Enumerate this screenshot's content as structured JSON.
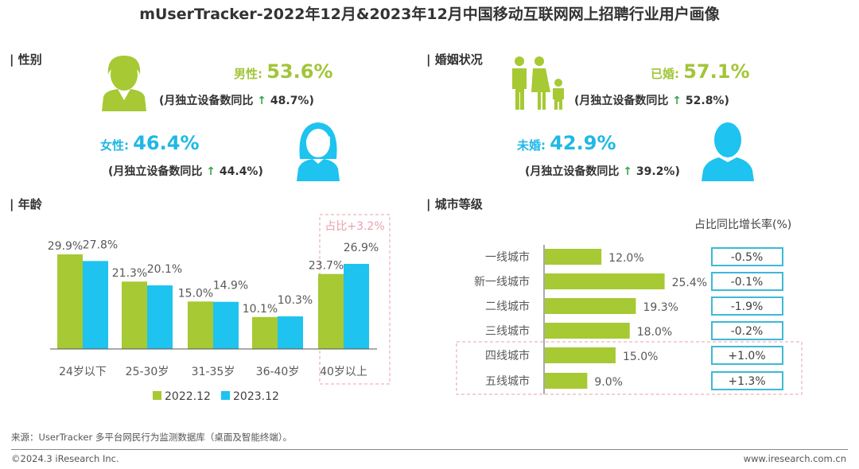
{
  "title": "mUserTracker-2022年12月&2023年12月中国移动互联网网上招聘行业用户画像",
  "gender": {
    "header": "| 性别",
    "male": {
      "label": "男性:",
      "pct": "53.6%",
      "sub_prefix": "(月独立设备数同比",
      "arrow": "↑",
      "sub_value": "48.7%)"
    },
    "female": {
      "label": "女性:",
      "pct": "46.4%",
      "sub_prefix": "(月独立设备数同比",
      "arrow": "↑",
      "sub_value": "44.4%)"
    }
  },
  "marital": {
    "header": "| 婚姻状况",
    "married": {
      "label": "已婚:",
      "pct": "57.1%",
      "sub_prefix": "(月独立设备数同比",
      "arrow": "↑",
      "sub_value": "52.8%)"
    },
    "single": {
      "label": "未婚:",
      "pct": "42.9%",
      "sub_prefix": "(月独立设备数同比",
      "arrow": "↑",
      "sub_value": "39.2%)"
    }
  },
  "colors": {
    "green": "#a6c934",
    "blue": "#1ec3ef",
    "highlight": "#e8a0ae"
  },
  "chart_data": [
    {
      "type": "bar",
      "header": "| 年龄",
      "categories": [
        "24岁以下",
        "25-30岁",
        "31-35岁",
        "36-40岁",
        "40岁以上"
      ],
      "series": [
        {
          "name": "2022.12",
          "values": [
            29.9,
            21.3,
            15.0,
            10.1,
            23.7
          ],
          "labels": [
            "29.9%",
            "21.3%",
            "15.0%",
            "10.1%",
            "23.7%"
          ]
        },
        {
          "name": "2023.12",
          "values": [
            27.8,
            20.1,
            14.9,
            10.3,
            26.9
          ],
          "labels": [
            "27.8%",
            "20.1%",
            "14.9%",
            "10.3%",
            "26.9%"
          ]
        }
      ],
      "annotation": "占比+3.2%",
      "legend": "bottom"
    },
    {
      "type": "bar",
      "orientation": "horizontal",
      "header": "| 城市等级",
      "categories": [
        "一线城市",
        "新一线城市",
        "二线城市",
        "三线城市",
        "四线城市",
        "五线城市"
      ],
      "values": [
        12.0,
        25.4,
        19.3,
        18.0,
        15.0,
        9.0
      ],
      "labels": [
        "12.0%",
        "25.4%",
        "19.3%",
        "18.0%",
        "15.0%",
        "9.0%"
      ],
      "growth_title": "占比同比增长率(%)",
      "growth": [
        "-0.5%",
        "-0.1%",
        "-1.9%",
        "-0.2%",
        "+1.0%",
        "+1.3%"
      ]
    }
  ],
  "footer": {
    "source": "来源：UserTracker 多平台网民行为监测数据库（桌面及智能终端）。",
    "copyright": "©2024.3 iResearch Inc.",
    "website": "www.iresearch.com.cn"
  }
}
